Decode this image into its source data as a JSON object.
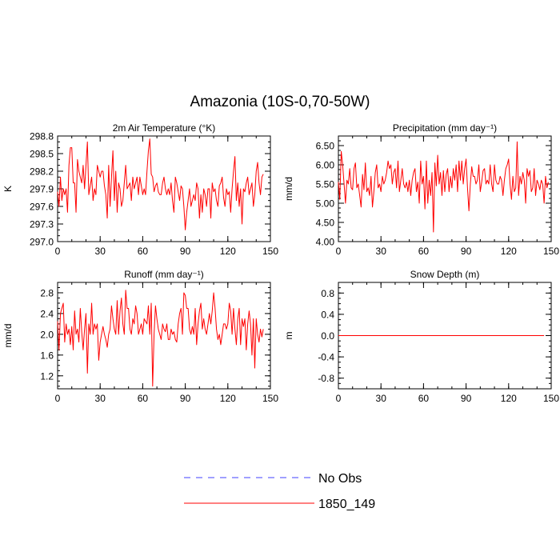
{
  "figure": {
    "title": "Amazonia (10S-0,70-50W)",
    "legend_placement": "bottom-center",
    "legend": [
      {
        "label": "No Obs",
        "color": "#4040ff",
        "style": "dashed"
      },
      {
        "label": "1850_149",
        "color": "#ff0000",
        "style": "solid"
      }
    ]
  },
  "chart_data": [
    {
      "type": "line",
      "title": "2m Air Temperature (°K)",
      "xlabel": "",
      "ylabel": "K",
      "xlim": [
        0,
        150
      ],
      "ylim": [
        297.0,
        298.8
      ],
      "xticks": [
        0,
        30,
        60,
        90,
        120,
        150
      ],
      "xtick_labels": [
        "0",
        "30",
        "60",
        "90",
        "120",
        "150"
      ],
      "yticks": [
        297.0,
        297.3,
        297.6,
        297.9,
        298.2,
        298.5,
        298.8
      ],
      "ytick_labels": [
        "297.0",
        "297.3",
        "297.6",
        "297.9",
        "298.2",
        "298.5",
        "298.8"
      ],
      "grid": false,
      "series": [
        {
          "name": "1850_149",
          "color": "#ff0000",
          "style": "solid",
          "x_start": 0,
          "values": [
            297.85,
            297.6,
            298.1,
            297.7,
            297.9,
            297.8,
            297.9,
            297.5,
            298.3,
            298.6,
            298.6,
            298.0,
            298.0,
            297.5,
            298.4,
            298.2,
            298.1,
            298.0,
            298.3,
            297.9,
            298.3,
            298.7,
            297.8,
            297.95,
            298.1,
            297.7,
            297.9,
            297.8,
            298.3,
            298.2,
            298.1,
            298.2,
            298.2,
            297.95,
            297.8,
            297.4,
            298.3,
            297.6,
            298.1,
            298.55,
            297.7,
            298.2,
            297.5,
            298.0,
            297.9,
            297.6,
            297.7,
            298.0,
            298.3,
            297.9,
            297.95,
            298.0,
            297.7,
            298.1,
            297.9,
            298.0,
            298.1,
            297.8,
            298.1,
            297.95,
            297.8,
            297.9,
            297.8,
            298.2,
            298.55,
            298.75,
            298.15,
            298.1,
            297.85,
            297.95,
            298.0,
            297.85,
            297.8,
            297.8,
            298.0,
            298.1,
            297.9,
            297.8,
            297.9,
            297.8,
            298.0,
            297.7,
            297.5,
            298.1,
            298.0,
            297.85,
            297.7,
            297.95,
            297.9,
            297.6,
            297.2,
            297.5,
            297.7,
            297.9,
            297.6,
            297.7,
            297.8,
            297.7,
            298.0,
            297.9,
            297.4,
            297.8,
            297.5,
            297.9,
            297.8,
            297.6,
            297.9,
            297.9,
            297.4,
            298.0,
            297.85,
            297.9,
            297.7,
            297.6,
            297.95,
            298.0,
            298.1,
            297.75,
            297.6,
            297.9,
            297.8,
            297.85,
            297.5,
            297.9,
            298.2,
            298.45,
            297.7,
            298.0,
            297.6,
            297.9,
            297.3,
            297.9,
            297.85,
            298.0,
            298.1,
            297.8,
            297.9,
            298.0,
            297.6,
            297.8,
            298.2,
            298.35,
            298.0,
            297.8,
            298.1,
            298.15
          ]
        }
      ]
    },
    {
      "type": "line",
      "title": "Precipitation (mm day⁻¹)",
      "xlabel": "",
      "ylabel": "mm/d",
      "xlim": [
        0,
        150
      ],
      "ylim": [
        4.0,
        6.75
      ],
      "xticks": [
        0,
        30,
        60,
        90,
        120,
        150
      ],
      "xtick_labels": [
        "0",
        "30",
        "60",
        "90",
        "120",
        "150"
      ],
      "yticks": [
        4.0,
        4.5,
        5.0,
        5.5,
        6.0,
        6.5
      ],
      "ytick_labels": [
        "4.00",
        "4.50",
        "5.00",
        "5.50",
        "6.00",
        "6.50"
      ],
      "grid": false,
      "series": [
        {
          "name": "1850_149",
          "color": "#ff0000",
          "style": "solid",
          "x_start": 0,
          "values": [
            5.55,
            5.1,
            6.35,
            6.0,
            5.5,
            5.0,
            5.6,
            5.5,
            5.9,
            5.4,
            5.35,
            5.9,
            6.05,
            5.4,
            5.5,
            5.2,
            4.9,
            5.75,
            5.35,
            6.05,
            5.3,
            5.4,
            5.2,
            5.7,
            4.9,
            5.3,
            5.8,
            6.0,
            5.4,
            5.5,
            5.3,
            5.7,
            5.5,
            5.6,
            5.8,
            6.1,
            5.9,
            6.0,
            5.5,
            5.8,
            5.9,
            5.4,
            6.1,
            5.3,
            5.6,
            5.9,
            5.5,
            5.4,
            5.55,
            5.3,
            5.6,
            5.2,
            5.6,
            5.8,
            5.9,
            5.3,
            5.55,
            5.0,
            6.1,
            5.5,
            5.7,
            4.85,
            6.1,
            5.0,
            5.6,
            5.2,
            5.8,
            4.25,
            6.05,
            5.45,
            6.25,
            5.5,
            5.8,
            5.2,
            5.85,
            5.3,
            5.75,
            5.9,
            5.3,
            5.7,
            5.4,
            5.9,
            5.6,
            6.0,
            5.3,
            6.1,
            5.6,
            6.1,
            5.5,
            5.9,
            6.15,
            5.4,
            4.8,
            5.5,
            5.95,
            5.7,
            5.7,
            5.5,
            5.6,
            6.0,
            5.3,
            5.55,
            5.85,
            5.9,
            5.5,
            5.6,
            5.5,
            6.0,
            5.5,
            5.3,
            6.0,
            5.6,
            5.5,
            5.5,
            5.7,
            5.6,
            5.2,
            5.6,
            5.9,
            6.0,
            6.15,
            5.5,
            5.1,
            5.7,
            5.3,
            5.4,
            6.6,
            5.2,
            5.7,
            5.5,
            5.8,
            5.6,
            5.0,
            5.9,
            5.7,
            5.85,
            5.3,
            5.4,
            5.9,
            5.2,
            5.6,
            5.5,
            5.35,
            5.6,
            5.5,
            5.0,
            5.7,
            5.4,
            5.55
          ]
        }
      ]
    },
    {
      "type": "line",
      "title": "Runoff (mm day⁻¹)",
      "xlabel": "",
      "ylabel": "mm/d",
      "xlim": [
        0,
        150
      ],
      "ylim": [
        0.95,
        3.0
      ],
      "xticks": [
        0,
        30,
        60,
        90,
        120,
        150
      ],
      "xtick_labels": [
        "0",
        "30",
        "60",
        "90",
        "120",
        "150"
      ],
      "yticks": [
        1.2,
        1.6,
        2.0,
        2.4,
        2.8
      ],
      "ytick_labels": [
        "1.2",
        "1.6",
        "2.0",
        "2.4",
        "2.8"
      ],
      "grid": false,
      "series": [
        {
          "name": "1850_149",
          "color": "#ff0000",
          "style": "solid",
          "x_start": 0,
          "values": [
            2.25,
            1.7,
            2.4,
            2.5,
            2.6,
            1.85,
            2.2,
            2.0,
            2.1,
            1.8,
            2.15,
            1.7,
            2.45,
            2.0,
            2.1,
            1.85,
            2.5,
            2.05,
            1.7,
            2.1,
            2.4,
            1.25,
            2.2,
            2.0,
            2.6,
            2.0,
            2.2,
            2.1,
            2.2,
            1.5,
            1.85,
            2.0,
            2.15,
            2.0,
            1.9,
            1.75,
            2.0,
            2.1,
            2.55,
            2.3,
            2.1,
            2.0,
            2.65,
            2.0,
            2.45,
            2.7,
            2.2,
            2.0,
            2.85,
            2.5,
            2.5,
            2.1,
            2.0,
            2.3,
            2.2,
            2.55,
            2.4,
            2.0,
            2.1,
            2.2,
            2.0,
            2.3,
            2.25,
            2.2,
            2.55,
            2.0,
            2.6,
            1.0,
            2.0,
            2.55,
            2.3,
            2.1,
            2.0,
            1.9,
            2.2,
            2.1,
            2.05,
            2.2,
            1.9,
            1.9,
            2.1,
            2.0,
            2.05,
            1.9,
            1.85,
            2.2,
            2.4,
            2.5,
            2.0,
            2.8,
            2.75,
            2.5,
            2.5,
            2.1,
            2.0,
            2.15,
            2.0,
            2.5,
            1.8,
            2.2,
            2.45,
            2.6,
            2.1,
            2.3,
            2.1,
            2.0,
            2.2,
            2.4,
            2.2,
            2.45,
            2.8,
            2.5,
            2.1,
            1.9,
            2.0,
            1.8,
            2.0,
            2.2,
            2.2,
            2.1,
            2.2,
            2.6,
            2.45,
            2.0,
            2.5,
            2.1,
            1.8,
            2.3,
            2.5,
            1.8,
            2.3,
            2.15,
            2.3,
            1.7,
            2.2,
            2.45,
            2.2,
            1.6,
            2.3,
            1.35,
            2.3,
            2.0,
            1.85,
            2.1,
            1.95,
            2.1
          ]
        }
      ]
    },
    {
      "type": "line",
      "title": "Snow Depth (m)",
      "xlabel": "",
      "ylabel": "m",
      "xlim": [
        0,
        150
      ],
      "ylim": [
        -1.0,
        1.0
      ],
      "xticks": [
        0,
        30,
        60,
        90,
        120,
        150
      ],
      "xtick_labels": [
        "0",
        "30",
        "60",
        "90",
        "120",
        "150"
      ],
      "yticks": [
        -0.8,
        -0.4,
        0.0,
        0.4,
        0.8
      ],
      "ytick_labels": [
        "-0.8",
        "-0.4",
        "0.0",
        "0.4",
        "0.8"
      ],
      "grid": false,
      "series": [
        {
          "name": "1850_149",
          "color": "#ff0000",
          "style": "solid",
          "x_start": 0,
          "constant_value": 0.0,
          "count": 146,
          "values": [
            0.0
          ]
        }
      ]
    }
  ]
}
